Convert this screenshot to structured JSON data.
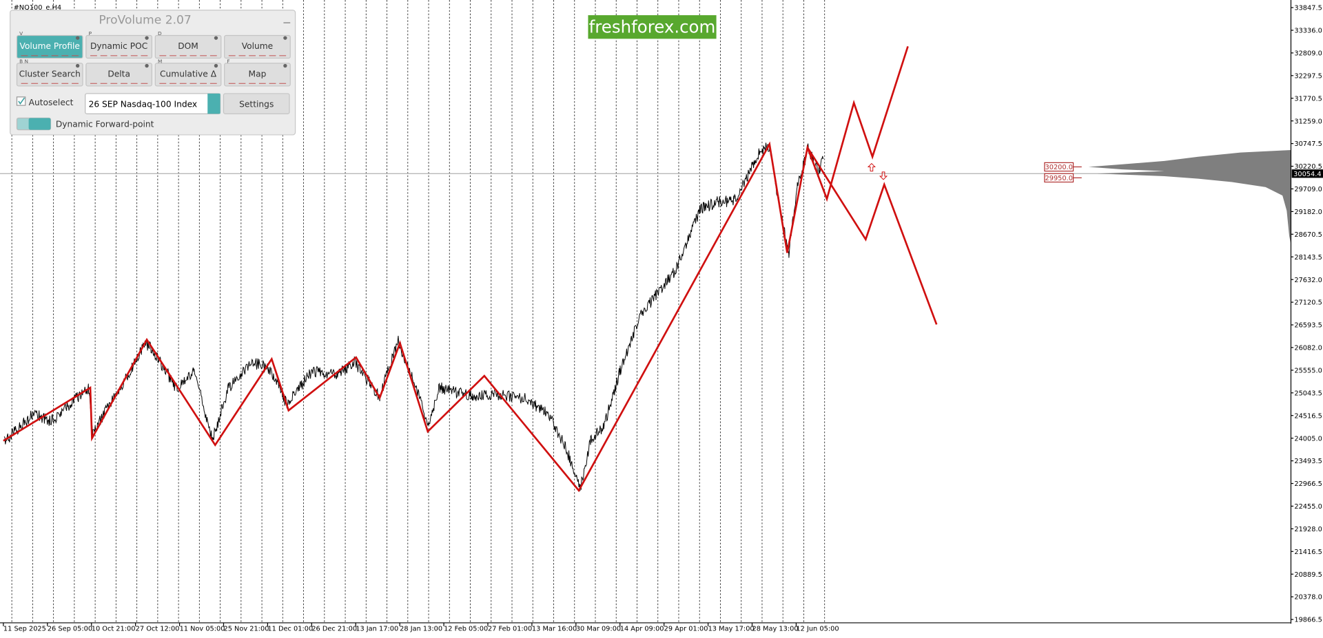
{
  "symbol": "#NQ100_e,H4",
  "panel": {
    "title": "ProVolume 2.07",
    "buttons": [
      {
        "key": "V",
        "label": "Volume Profile"
      },
      {
        "key": "P",
        "label": "Dynamic POC"
      },
      {
        "key": "D",
        "label": "DOM"
      },
      {
        "label": "Volume"
      },
      {
        "key": "B N",
        "label": "Cluster Search"
      },
      {
        "label": "Delta"
      },
      {
        "key": "M",
        "label": "Cumulative Δ"
      },
      {
        "key": "F",
        "label": "Map"
      }
    ],
    "autoselect": "Autoselect",
    "instrument": "26 SEP Nasdaq-100 Index",
    "settings": "Settings",
    "forward_point": "Dynamic Forward-point"
  },
  "watermark": "freshforex.com",
  "price_axis": [
    "33847.5",
    "33336.0",
    "32809.0",
    "32297.5",
    "31770.5",
    "31259.0",
    "30747.5",
    "30220.5",
    "29709.0",
    "29182.0",
    "28670.5",
    "28143.5",
    "27632.0",
    "27120.5",
    "26593.5",
    "26082.0",
    "25555.0",
    "25043.5",
    "24516.5",
    "24005.0",
    "23493.5",
    "22966.5",
    "22455.0",
    "21928.0",
    "21416.5",
    "20889.5",
    "20378.0",
    "19866.5"
  ],
  "time_axis": [
    "11 Sep 2025",
    "26 Sep 05:00",
    "10 Oct 21:00",
    "27 Oct 12:00",
    "11 Nov 05:00",
    "25 Nov 21:00",
    "11 Dec 01:00",
    "26 Dec 21:00",
    "13 Jan 17:00",
    "28 Jan 13:00",
    "12 Feb 05:00",
    "27 Feb 01:00",
    "13 Mar 16:00",
    "30 Mar 09:00",
    "14 Apr 09:00",
    "29 Apr 01:00",
    "13 May 17:00",
    "28 May 13:00",
    "12 Jun 05:00"
  ],
  "levels": [
    "30200.0",
    "29950.0"
  ],
  "current_price": "30054.4"
}
